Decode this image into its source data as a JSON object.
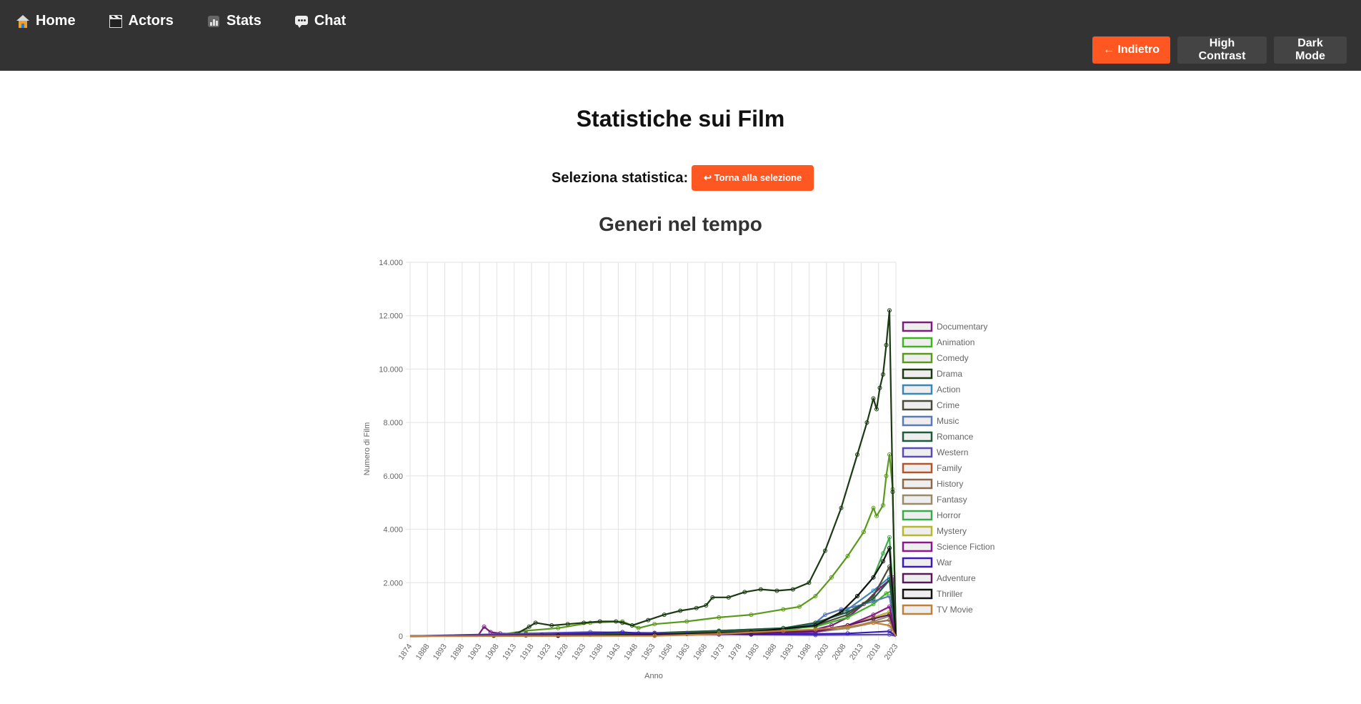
{
  "nav": {
    "items": [
      {
        "label": "Home",
        "icon": "home-icon"
      },
      {
        "label": "Actors",
        "icon": "clapperboard-icon"
      },
      {
        "label": "Stats",
        "icon": "stats-icon"
      },
      {
        "label": "Chat",
        "icon": "chat-icon"
      }
    ]
  },
  "toolbar": {
    "back_label": "← Indietro",
    "high_contrast_label": "High Contrast",
    "dark_mode_label": "Dark Mode"
  },
  "page": {
    "title": "Statistiche sui Film",
    "selector_label": "Seleziona statistica:",
    "return_label": "↩ Torna alla selezione"
  },
  "colors": {
    "topbar": "#333333",
    "accent": "#ff5722",
    "button_dark": "#444444"
  },
  "chart_data": {
    "type": "line",
    "title": "Generi nel tempo",
    "xlabel": "Anno",
    "ylabel": "Numero di Film",
    "xlim": [
      1874,
      2025
    ],
    "ylim": [
      0,
      14000
    ],
    "yticks": [
      0,
      2000,
      4000,
      6000,
      8000,
      10000,
      12000,
      14000
    ],
    "ytick_labels": [
      "0",
      "2.000",
      "4.000",
      "6.000",
      "8.000",
      "10.000",
      "12.000",
      "14.000"
    ],
    "xtick_labels": [
      "1874",
      "1888",
      "1893",
      "1898",
      "1903",
      "1908",
      "1913",
      "1918",
      "1923",
      "1928",
      "1933",
      "1938",
      "1943",
      "1948",
      "1953",
      "1958",
      "1963",
      "1968",
      "1973",
      "1978",
      "1983",
      "1988",
      "1993",
      "1998",
      "2003",
      "2008",
      "2013",
      "2018",
      "2023"
    ],
    "grid": true,
    "legend_position": "right",
    "series": [
      {
        "name": "Documentary",
        "color": "#7b1e7b",
        "points": [
          [
            1874,
            0
          ],
          [
            1895,
            0
          ],
          [
            1897,
            350
          ],
          [
            1899,
            150
          ],
          [
            1902,
            100
          ],
          [
            1910,
            80
          ],
          [
            1930,
            60
          ],
          [
            1950,
            50
          ],
          [
            1970,
            60
          ],
          [
            1990,
            120
          ],
          [
            2000,
            250
          ],
          [
            2005,
            400
          ],
          [
            2010,
            700
          ],
          [
            2015,
            1200
          ],
          [
            2020,
            1800
          ],
          [
            2024,
            2200
          ],
          [
            2025,
            0
          ]
        ]
      },
      {
        "name": "Animation",
        "color": "#3cb521",
        "points": [
          [
            1874,
            0
          ],
          [
            1900,
            10
          ],
          [
            1920,
            40
          ],
          [
            1940,
            80
          ],
          [
            1960,
            120
          ],
          [
            1980,
            200
          ],
          [
            2000,
            350
          ],
          [
            2010,
            700
          ],
          [
            2018,
            1200
          ],
          [
            2022,
            1600
          ],
          [
            2024,
            1700
          ],
          [
            2025,
            0
          ]
        ]
      },
      {
        "name": "Comedy",
        "color": "#5a9a1a",
        "points": [
          [
            1874,
            0
          ],
          [
            1900,
            20
          ],
          [
            1910,
            200
          ],
          [
            1920,
            300
          ],
          [
            1930,
            500
          ],
          [
            1940,
            550
          ],
          [
            1945,
            300
          ],
          [
            1950,
            450
          ],
          [
            1960,
            550
          ],
          [
            1970,
            700
          ],
          [
            1980,
            800
          ],
          [
            1990,
            1000
          ],
          [
            1995,
            1100
          ],
          [
            2000,
            1500
          ],
          [
            2005,
            2200
          ],
          [
            2010,
            3000
          ],
          [
            2015,
            3900
          ],
          [
            2018,
            4800
          ],
          [
            2019,
            4500
          ],
          [
            2021,
            4900
          ],
          [
            2022,
            6000
          ],
          [
            2023,
            6800
          ],
          [
            2024,
            5500
          ],
          [
            2025,
            0
          ]
        ]
      },
      {
        "name": "Drama",
        "color": "#1b3a12",
        "points": [
          [
            1874,
            0
          ],
          [
            1900,
            20
          ],
          [
            1907,
            80
          ],
          [
            1911,
            350
          ],
          [
            1913,
            500
          ],
          [
            1918,
            400
          ],
          [
            1923,
            450
          ],
          [
            1928,
            500
          ],
          [
            1933,
            550
          ],
          [
            1938,
            550
          ],
          [
            1940,
            500
          ],
          [
            1943,
            400
          ],
          [
            1948,
            600
          ],
          [
            1953,
            800
          ],
          [
            1958,
            950
          ],
          [
            1963,
            1050
          ],
          [
            1966,
            1150
          ],
          [
            1968,
            1450
          ],
          [
            1973,
            1450
          ],
          [
            1978,
            1650
          ],
          [
            1983,
            1750
          ],
          [
            1988,
            1700
          ],
          [
            1993,
            1750
          ],
          [
            1998,
            2000
          ],
          [
            2003,
            3200
          ],
          [
            2008,
            4800
          ],
          [
            2013,
            6800
          ],
          [
            2016,
            8000
          ],
          [
            2018,
            8900
          ],
          [
            2019,
            8500
          ],
          [
            2020,
            9300
          ],
          [
            2021,
            9800
          ],
          [
            2022,
            10900
          ],
          [
            2023,
            12200
          ],
          [
            2024,
            5400
          ],
          [
            2025,
            0
          ]
        ]
      },
      {
        "name": "Action",
        "color": "#3a86b4",
        "points": [
          [
            1874,
            0
          ],
          [
            1910,
            30
          ],
          [
            1930,
            60
          ],
          [
            1950,
            100
          ],
          [
            1970,
            200
          ],
          [
            1990,
            300
          ],
          [
            2000,
            450
          ],
          [
            2010,
            1000
          ],
          [
            2018,
            1700
          ],
          [
            2023,
            2200
          ],
          [
            2025,
            0
          ]
        ]
      },
      {
        "name": "Crime",
        "color": "#4a4a3a",
        "points": [
          [
            1874,
            0
          ],
          [
            1910,
            30
          ],
          [
            1930,
            80
          ],
          [
            1950,
            100
          ],
          [
            1970,
            180
          ],
          [
            1990,
            250
          ],
          [
            2000,
            400
          ],
          [
            2010,
            800
          ],
          [
            2018,
            1500
          ],
          [
            2023,
            2600
          ],
          [
            2025,
            0
          ]
        ]
      },
      {
        "name": "Music",
        "color": "#5a7ab8",
        "points": [
          [
            1874,
            0
          ],
          [
            1910,
            20
          ],
          [
            1930,
            50
          ],
          [
            1950,
            70
          ],
          [
            1970,
            100
          ],
          [
            1990,
            200
          ],
          [
            2000,
            500
          ],
          [
            2003,
            800
          ],
          [
            2008,
            1000
          ],
          [
            2012,
            1100
          ],
          [
            2018,
            1300
          ],
          [
            2023,
            1500
          ],
          [
            2025,
            0
          ]
        ]
      },
      {
        "name": "Romance",
        "color": "#1f5a3a",
        "points": [
          [
            1874,
            0
          ],
          [
            1910,
            40
          ],
          [
            1930,
            100
          ],
          [
            1950,
            120
          ],
          [
            1970,
            200
          ],
          [
            1990,
            300
          ],
          [
            2000,
            500
          ],
          [
            2010,
            900
          ],
          [
            2018,
            1400
          ],
          [
            2023,
            2100
          ],
          [
            2025,
            0
          ]
        ]
      },
      {
        "name": "Western",
        "color": "#5a4ab8",
        "points": [
          [
            1874,
            0
          ],
          [
            1910,
            100
          ],
          [
            1930,
            150
          ],
          [
            1950,
            120
          ],
          [
            1960,
            100
          ],
          [
            1980,
            60
          ],
          [
            2000,
            40
          ],
          [
            2023,
            60
          ],
          [
            2025,
            0
          ]
        ]
      },
      {
        "name": "Family",
        "color": "#b5552a",
        "points": [
          [
            1874,
            0
          ],
          [
            1920,
            20
          ],
          [
            1950,
            50
          ],
          [
            1980,
            100
          ],
          [
            2000,
            200
          ],
          [
            2010,
            400
          ],
          [
            2018,
            700
          ],
          [
            2023,
            900
          ],
          [
            2025,
            0
          ]
        ]
      },
      {
        "name": "History",
        "color": "#8a6a4a",
        "points": [
          [
            1874,
            0
          ],
          [
            1920,
            20
          ],
          [
            1950,
            40
          ],
          [
            1980,
            80
          ],
          [
            2000,
            150
          ],
          [
            2010,
            300
          ],
          [
            2018,
            500
          ],
          [
            2023,
            600
          ],
          [
            2025,
            0
          ]
        ]
      },
      {
        "name": "Fantasy",
        "color": "#9a8a6a",
        "points": [
          [
            1874,
            0
          ],
          [
            1920,
            15
          ],
          [
            1950,
            30
          ],
          [
            1980,
            80
          ],
          [
            2000,
            150
          ],
          [
            2010,
            300
          ],
          [
            2018,
            550
          ],
          [
            2023,
            750
          ],
          [
            2025,
            0
          ]
        ]
      },
      {
        "name": "Horror",
        "color": "#3aaa4a",
        "points": [
          [
            1874,
            0
          ],
          [
            1920,
            20
          ],
          [
            1950,
            40
          ],
          [
            1970,
            100
          ],
          [
            1990,
            200
          ],
          [
            2000,
            400
          ],
          [
            2008,
            900
          ],
          [
            2013,
            1500
          ],
          [
            2018,
            2200
          ],
          [
            2021,
            3100
          ],
          [
            2023,
            3700
          ],
          [
            2025,
            0
          ]
        ]
      },
      {
        "name": "Mystery",
        "color": "#b8b830",
        "points": [
          [
            1874,
            0
          ],
          [
            1920,
            20
          ],
          [
            1950,
            50
          ],
          [
            1980,
            100
          ],
          [
            2000,
            200
          ],
          [
            2010,
            400
          ],
          [
            2018,
            700
          ],
          [
            2023,
            900
          ],
          [
            2025,
            0
          ]
        ]
      },
      {
        "name": "Science Fiction",
        "color": "#8a1a8a",
        "points": [
          [
            1874,
            0
          ],
          [
            1920,
            10
          ],
          [
            1950,
            40
          ],
          [
            1980,
            80
          ],
          [
            2000,
            150
          ],
          [
            2010,
            400
          ],
          [
            2018,
            800
          ],
          [
            2023,
            1100
          ],
          [
            2025,
            0
          ]
        ]
      },
      {
        "name": "War",
        "color": "#3a1ab8",
        "points": [
          [
            1874,
            0
          ],
          [
            1915,
            50
          ],
          [
            1940,
            150
          ],
          [
            1945,
            100
          ],
          [
            1960,
            80
          ],
          [
            1980,
            60
          ],
          [
            2000,
            80
          ],
          [
            2010,
            100
          ],
          [
            2023,
            180
          ],
          [
            2025,
            0
          ]
        ]
      },
      {
        "name": "Adventure",
        "color": "#5a1a5a",
        "points": [
          [
            1874,
            0
          ],
          [
            1920,
            30
          ],
          [
            1950,
            60
          ],
          [
            1980,
            100
          ],
          [
            2000,
            200
          ],
          [
            2010,
            400
          ],
          [
            2018,
            650
          ],
          [
            2023,
            800
          ],
          [
            2025,
            0
          ]
        ]
      },
      {
        "name": "Thriller",
        "color": "#111111",
        "points": [
          [
            1874,
            0
          ],
          [
            1920,
            20
          ],
          [
            1950,
            50
          ],
          [
            1980,
            150
          ],
          [
            2000,
            400
          ],
          [
            2008,
            900
          ],
          [
            2013,
            1500
          ],
          [
            2018,
            2200
          ],
          [
            2021,
            2800
          ],
          [
            2023,
            3300
          ],
          [
            2025,
            0
          ]
        ]
      },
      {
        "name": "TV Movie",
        "color": "#c0803a",
        "points": [
          [
            1874,
            0
          ],
          [
            1950,
            10
          ],
          [
            1970,
            80
          ],
          [
            1990,
            200
          ],
          [
            2000,
            250
          ],
          [
            2010,
            350
          ],
          [
            2018,
            500
          ],
          [
            2023,
            400
          ],
          [
            2025,
            0
          ]
        ]
      }
    ]
  }
}
